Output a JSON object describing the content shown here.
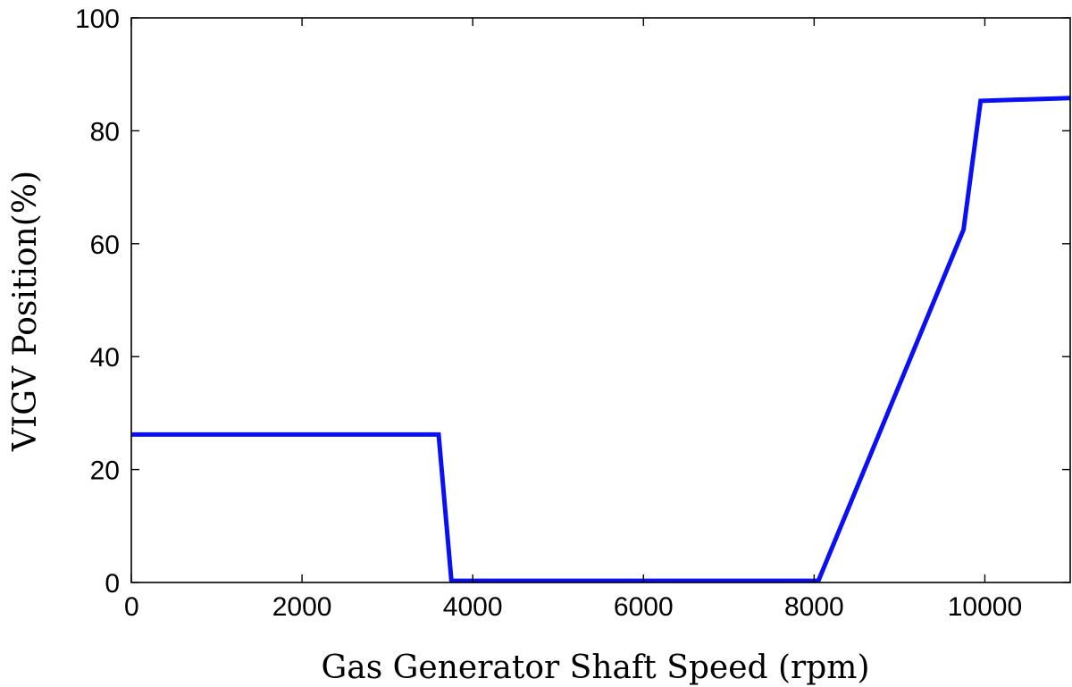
{
  "chart_data": {
    "type": "line",
    "title": "",
    "xlabel": "Gas Generator Shaft Speed (rpm)",
    "ylabel": "VIGV Position(%)",
    "xlim": [
      0,
      11000
    ],
    "ylim": [
      0,
      100
    ],
    "x_ticks": [
      0,
      2000,
      4000,
      6000,
      8000,
      10000
    ],
    "y_ticks": [
      0,
      20,
      40,
      60,
      80,
      100
    ],
    "grid": false,
    "legend": "none",
    "series": [
      {
        "color": "#0a10f5",
        "points": [
          [
            0,
            26.2
          ],
          [
            3600,
            26.2
          ],
          [
            3750,
            0.3
          ],
          [
            8050,
            0.3
          ],
          [
            9750,
            62.5
          ],
          [
            9950,
            85.3
          ],
          [
            11000,
            85.8
          ]
        ]
      }
    ]
  }
}
